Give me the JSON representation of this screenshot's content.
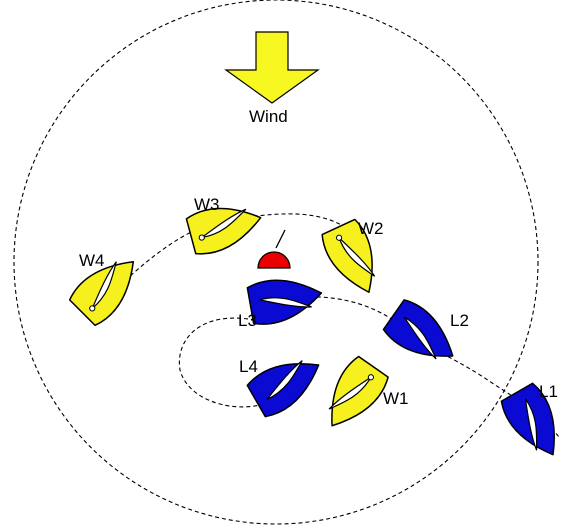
{
  "diagram": {
    "wind_label": "Wind",
    "colors": {
      "windward_boat": "#f5f01e",
      "leeward_boat": "#0a0ad2",
      "mark": "#ea0000",
      "wind_arrow": "#f7f722"
    },
    "icons": [
      "wind-arrow-icon",
      "mark-buoy-icon",
      "boat-icon"
    ],
    "boats": [
      {
        "id": "W4",
        "label": "W4",
        "team": "windward"
      },
      {
        "id": "W3",
        "label": "W3",
        "team": "windward"
      },
      {
        "id": "W2",
        "label": "W2",
        "team": "windward"
      },
      {
        "id": "W1",
        "label": "W1",
        "team": "windward"
      },
      {
        "id": "L3",
        "label": "L3",
        "team": "leeward"
      },
      {
        "id": "L2",
        "label": "L2",
        "team": "leeward"
      },
      {
        "id": "L4",
        "label": "L4",
        "team": "leeward"
      },
      {
        "id": "L1",
        "label": "L1",
        "team": "leeward"
      }
    ]
  }
}
